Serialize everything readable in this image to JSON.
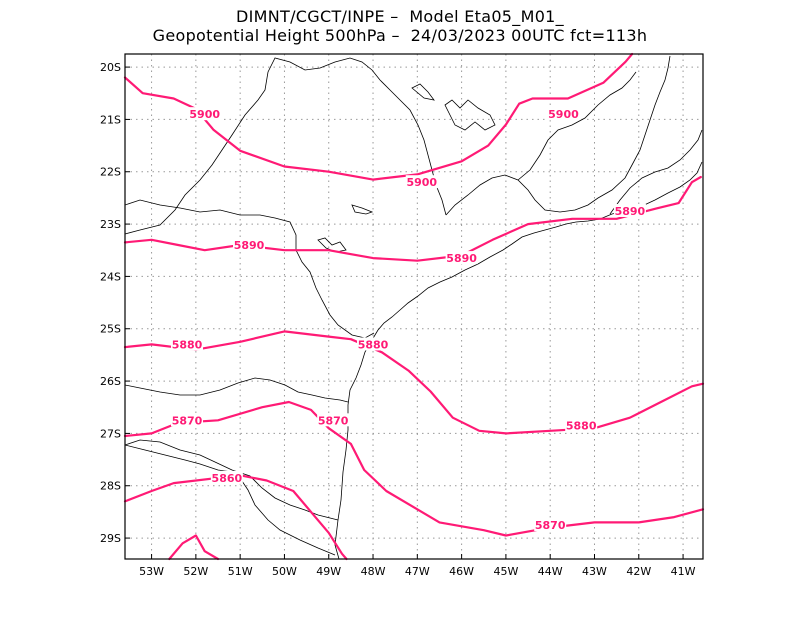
{
  "header": {
    "line1": "DIMNT/CGCT/INPE –  Model Eta05_M01_",
    "line2": "Geopotential Height 500hPa –  24/03/2023 00UTC fct=113h"
  },
  "map": {
    "lon_range": [
      -53.6,
      -40.55
    ],
    "lat_range": [
      -29.4,
      -19.75
    ],
    "grid": true,
    "contour_color": "#ff1a75",
    "x_ticks": [
      {
        "value": -53,
        "label": "53W"
      },
      {
        "value": -52,
        "label": "52W"
      },
      {
        "value": -51,
        "label": "51W"
      },
      {
        "value": -50,
        "label": "50W"
      },
      {
        "value": -49,
        "label": "49W"
      },
      {
        "value": -48,
        "label": "48W"
      },
      {
        "value": -47,
        "label": "47W"
      },
      {
        "value": -46,
        "label": "46W"
      },
      {
        "value": -45,
        "label": "45W"
      },
      {
        "value": -44,
        "label": "44W"
      },
      {
        "value": -43,
        "label": "43W"
      },
      {
        "value": -42,
        "label": "42W"
      },
      {
        "value": -41,
        "label": "41W"
      }
    ],
    "y_ticks": [
      {
        "value": -20,
        "label": "20S"
      },
      {
        "value": -21,
        "label": "21S"
      },
      {
        "value": -22,
        "label": "22S"
      },
      {
        "value": -23,
        "label": "23S"
      },
      {
        "value": -24,
        "label": "24S"
      },
      {
        "value": -25,
        "label": "25S"
      },
      {
        "value": -26,
        "label": "26S"
      },
      {
        "value": -27,
        "label": "27S"
      },
      {
        "value": -28,
        "label": "28S"
      },
      {
        "value": -29,
        "label": "29S"
      }
    ]
  },
  "chart_data": {
    "type": "contour-map",
    "title": "Geopotential Height 500hPa",
    "contours": [
      {
        "value": 5900,
        "label": "5900",
        "segments": [
          [
            [
              -53.6,
              -20.2
            ],
            [
              -53.2,
              -20.5
            ],
            [
              -52.5,
              -20.6
            ],
            [
              -52.0,
              -20.8
            ],
            [
              -51.6,
              -21.2
            ],
            [
              -51.0,
              -21.6
            ],
            [
              -50.0,
              -21.9
            ],
            [
              -49.0,
              -22.0
            ],
            [
              -48.0,
              -22.15
            ],
            [
              -47.0,
              -22.05
            ],
            [
              -46.0,
              -21.8
            ],
            [
              -45.4,
              -21.5
            ],
            [
              -45.0,
              -21.1
            ],
            [
              -44.7,
              -20.7
            ],
            [
              -44.4,
              -20.6
            ],
            [
              -43.6,
              -20.6
            ],
            [
              -42.8,
              -20.3
            ],
            [
              -42.3,
              -19.9
            ],
            [
              -42.15,
              -19.75
            ]
          ]
        ],
        "label_at": [
          [
            -51.8,
            -20.9
          ],
          [
            -46.9,
            -22.2
          ],
          [
            -43.7,
            -20.9
          ]
        ]
      },
      {
        "value": 5890,
        "label": "5890",
        "segments": [
          [
            [
              -53.6,
              -23.35
            ],
            [
              -53.0,
              -23.3
            ],
            [
              -52.4,
              -23.4
            ],
            [
              -51.8,
              -23.5
            ],
            [
              -51.0,
              -23.4
            ],
            [
              -50.0,
              -23.5
            ],
            [
              -49.0,
              -23.5
            ],
            [
              -48.0,
              -23.65
            ],
            [
              -47.0,
              -23.7
            ],
            [
              -46.0,
              -23.6
            ],
            [
              -45.3,
              -23.3
            ],
            [
              -44.5,
              -23.0
            ],
            [
              -43.5,
              -22.9
            ],
            [
              -42.5,
              -22.9
            ],
            [
              -41.6,
              -22.7
            ],
            [
              -41.1,
              -22.6
            ],
            [
              -40.8,
              -22.2
            ],
            [
              -40.6,
              -22.1
            ]
          ]
        ],
        "label_at": [
          [
            -50.8,
            -23.4
          ],
          [
            -46.0,
            -23.65
          ],
          [
            -42.2,
            -22.75
          ]
        ]
      },
      {
        "value": 5880,
        "label": "5880",
        "segments": [
          [
            [
              -53.6,
              -25.35
            ],
            [
              -53.0,
              -25.3
            ],
            [
              -52.0,
              -25.4
            ],
            [
              -51.0,
              -25.25
            ],
            [
              -50.0,
              -25.05
            ],
            [
              -49.0,
              -25.15
            ],
            [
              -48.5,
              -25.2
            ],
            [
              -47.8,
              -25.45
            ],
            [
              -47.2,
              -25.8
            ],
            [
              -46.7,
              -26.2
            ],
            [
              -46.2,
              -26.7
            ],
            [
              -45.6,
              -26.95
            ],
            [
              -45.0,
              -27.0
            ],
            [
              -44.0,
              -26.95
            ],
            [
              -43.0,
              -26.9
            ],
            [
              -42.2,
              -26.7
            ],
            [
              -41.5,
              -26.4
            ],
            [
              -40.8,
              -26.1
            ],
            [
              -40.55,
              -26.05
            ]
          ]
        ],
        "label_at": [
          [
            -52.2,
            -25.3
          ],
          [
            -48.0,
            -25.3
          ],
          [
            -43.3,
            -26.85
          ]
        ]
      },
      {
        "value": 5870,
        "label": "5870",
        "segments": [
          [
            [
              -53.6,
              -27.05
            ],
            [
              -53.0,
              -27.0
            ],
            [
              -52.4,
              -26.8
            ],
            [
              -51.5,
              -26.75
            ],
            [
              -50.5,
              -26.5
            ],
            [
              -49.9,
              -26.4
            ],
            [
              -49.4,
              -26.55
            ],
            [
              -49.0,
              -26.9
            ],
            [
              -48.5,
              -27.2
            ],
            [
              -48.2,
              -27.7
            ],
            [
              -47.7,
              -28.1
            ],
            [
              -47.0,
              -28.45
            ],
            [
              -46.5,
              -28.7
            ],
            [
              -45.5,
              -28.85
            ],
            [
              -45.0,
              -28.95
            ],
            [
              -44.0,
              -28.8
            ],
            [
              -43.0,
              -28.7
            ],
            [
              -42.0,
              -28.7
            ],
            [
              -41.2,
              -28.6
            ],
            [
              -40.55,
              -28.45
            ]
          ]
        ],
        "label_at": [
          [
            -52.2,
            -26.75
          ],
          [
            -48.9,
            -26.75
          ],
          [
            -44.0,
            -28.75
          ]
        ]
      },
      {
        "value": 5860,
        "label": "5860",
        "segments": [
          [
            [
              -53.6,
              -28.3
            ],
            [
              -53.0,
              -28.1
            ],
            [
              -52.5,
              -27.95
            ],
            [
              -51.0,
              -27.8
            ],
            [
              -50.4,
              -27.9
            ],
            [
              -49.8,
              -28.1
            ],
            [
              -49.4,
              -28.5
            ],
            [
              -49.0,
              -28.9
            ],
            [
              -48.7,
              -29.3
            ],
            [
              -48.6,
              -29.4
            ]
          ],
          [
            [
              -52.6,
              -29.4
            ],
            [
              -52.3,
              -29.1
            ],
            [
              -52.0,
              -28.95
            ],
            [
              -51.8,
              -29.25
            ],
            [
              -51.5,
              -29.4
            ]
          ]
        ],
        "label_at": [
          [
            -51.3,
            -27.85
          ]
        ]
      }
    ]
  }
}
